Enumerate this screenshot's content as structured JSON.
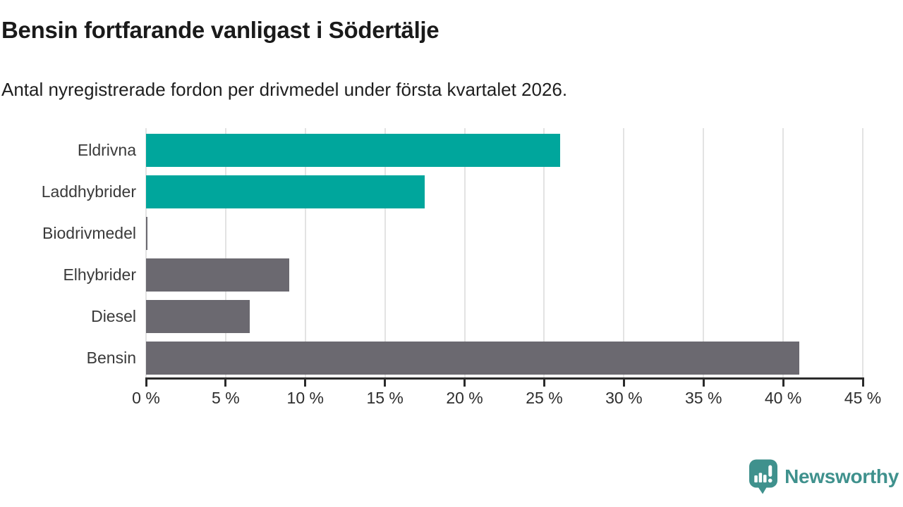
{
  "chart_data": {
    "type": "bar",
    "orientation": "horizontal",
    "title": "Bensin fortfarande vanligast i Södertälje",
    "subtitle": "Antal nyregistrerade fordon per drivmedel under första kvartalet 2026.",
    "categories": [
      "Eldrivna",
      "Laddhybrider",
      "Biodrivmedel",
      "Elhybrider",
      "Diesel",
      "Bensin"
    ],
    "values": [
      26,
      17.5,
      0.1,
      9,
      6.5,
      41
    ],
    "unit": "%",
    "xlim": [
      0,
      45
    ],
    "x_ticks": [
      0,
      5,
      10,
      15,
      20,
      25,
      30,
      35,
      40,
      45
    ],
    "x_tick_labels": [
      "0 %",
      "5 %",
      "10 %",
      "15 %",
      "20 %",
      "25 %",
      "30 %",
      "35 %",
      "40 %",
      "45 %"
    ],
    "bar_colors": [
      "#00A69C",
      "#00A69C",
      "#6B6970",
      "#6B6970",
      "#6B6970",
      "#6B6970"
    ],
    "grid": true,
    "legend": false
  },
  "colors": {
    "teal": "#00A69C",
    "gray": "#6B6970",
    "gridline": "#E3E3E3",
    "axis": "#2B2B2B",
    "brand": "#3F918D"
  },
  "footer": {
    "brand": "Newsworthy",
    "logo_icon": "newsworthy-speech-bubble-chart-icon"
  }
}
